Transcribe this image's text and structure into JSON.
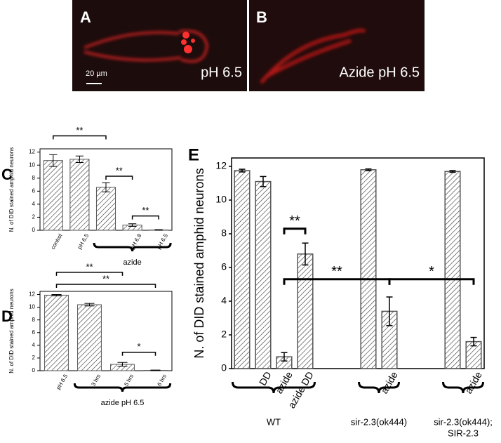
{
  "images": [
    {
      "label": "A",
      "caption": "pH 6.5",
      "scale": "20 µm"
    },
    {
      "label": "B",
      "caption": "Azide pH 6.5"
    }
  ],
  "chart_data": [
    {
      "type": "bar",
      "panel_label": "C",
      "ylabel": "N. of DID stained amphid neurons",
      "categories": [
        "control",
        "pH 6.5",
        null,
        "pH 6.8",
        "pH 6.5"
      ],
      "values": [
        10.7,
        10.9,
        6.6,
        0.8,
        0.05
      ],
      "errors": [
        0.9,
        0.5,
        0.7,
        0.2,
        0.05
      ],
      "ylim": [
        0,
        12.5
      ],
      "yticks": [
        0,
        2,
        4,
        6,
        8,
        10,
        12
      ],
      "color": "#555555",
      "groups": [
        {
          "label": [
            "azide"
          ],
          "from": 2,
          "to": 4
        }
      ],
      "annotations": [
        {
          "text": "**",
          "from": 0,
          "to": 2,
          "y": 14.5
        },
        {
          "text": "**",
          "from": 2,
          "to": 3,
          "y": 8.3
        },
        {
          "text": "**",
          "from": 3,
          "to": 4,
          "y": 2.2
        }
      ]
    },
    {
      "type": "bar",
      "panel_label": "D",
      "ylabel": "N. of DID stained amphid neurons",
      "categories": [
        "pH 6.5",
        "3 hrs",
        "5 hrs",
        "6 hrs"
      ],
      "values": [
        11.9,
        10.4,
        1.0,
        0.05
      ],
      "errors": [
        0.1,
        0.2,
        0.3,
        0.05
      ],
      "ylim": [
        0,
        12.5
      ],
      "yticks": [
        0,
        2,
        4,
        6,
        8,
        10,
        12
      ],
      "color": "#555555",
      "groups": [
        {
          "label": [
            "azide pH 6.5"
          ],
          "from": 1,
          "to": 3
        }
      ],
      "annotations": [
        {
          "text": "**",
          "from": 0,
          "to": 2,
          "y": 15.5
        },
        {
          "text": "**",
          "from": 0,
          "to": 3,
          "y": 13.6
        },
        {
          "text": "*",
          "from": 2,
          "to": 3,
          "y": 2.9
        }
      ]
    },
    {
      "type": "bar",
      "panel_label": "E",
      "ylabel": "N. of DID stained amphid neurons",
      "categories": [
        null,
        "DD",
        "azide",
        "azide DD",
        null,
        null,
        null,
        "azide",
        null,
        null,
        null,
        "azide"
      ],
      "values": [
        11.75,
        11.1,
        0.7,
        6.8,
        null,
        null,
        11.8,
        3.4,
        null,
        null,
        11.7,
        1.6
      ],
      "errors": [
        0.08,
        0.3,
        0.25,
        0.65,
        null,
        null,
        0.05,
        0.85,
        null,
        null,
        0.05,
        0.25
      ],
      "ylim": [
        0,
        12.5
      ],
      "yticks": [
        0,
        2,
        4,
        6,
        8,
        10,
        12
      ],
      "color": "#555555",
      "groups": [
        {
          "label": [
            "WT"
          ],
          "from": 0,
          "to": 3
        },
        {
          "label": [
            "sir-2.3(ok444)"
          ],
          "from": 6,
          "to": 7
        },
        {
          "label": [
            "sir-2.3(ok444);",
            "SIR-2.3"
          ],
          "from": 10,
          "to": 11
        }
      ],
      "annotations": [
        {
          "text": "**",
          "from": 2,
          "to": 3,
          "y": 8.3
        },
        {
          "text": "**",
          "from": 2,
          "to": 7,
          "y": 5.3
        },
        {
          "text": "*",
          "from": 7,
          "to": 11,
          "y": 5.3
        }
      ]
    }
  ]
}
